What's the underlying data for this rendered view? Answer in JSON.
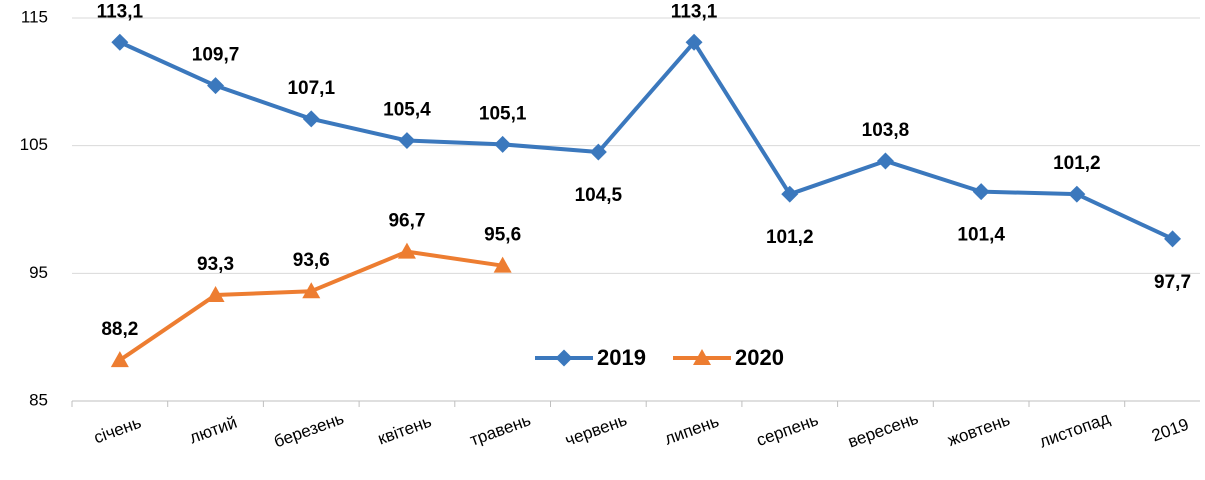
{
  "chart_data": {
    "type": "line",
    "categories": [
      "січень",
      "лютий",
      "березень",
      "квітень",
      "травень",
      "червень",
      "липень",
      "серпень",
      "вересень",
      "жовтень",
      "листопад",
      "2019"
    ],
    "series": [
      {
        "name": "2019",
        "color": "#3b78bd",
        "label_color": "#1f4e79",
        "values": [
          113.1,
          109.7,
          107.1,
          105.4,
          105.1,
          104.5,
          113.1,
          101.2,
          103.8,
          101.4,
          101.2,
          97.7
        ],
        "value_labels": [
          "113,1",
          "109,7",
          "107,1",
          "105,4",
          "105,1",
          "104,5",
          "113,1",
          "101,2",
          "103,8",
          "101,4",
          "101,2",
          "97,7"
        ]
      },
      {
        "name": "2020",
        "color": "#ed7d31",
        "label_color": "#c55a11",
        "values": [
          88.2,
          93.3,
          93.6,
          96.7,
          95.6,
          null,
          null,
          null,
          null,
          null,
          null,
          null
        ],
        "value_labels": [
          "88,2",
          "93,3",
          "93,6",
          "96,7",
          "95,6",
          null,
          null,
          null,
          null,
          null,
          null,
          null
        ]
      }
    ],
    "ylim": [
      85,
      115
    ],
    "yticks": [
      85,
      95,
      105,
      115
    ],
    "grid": true
  }
}
